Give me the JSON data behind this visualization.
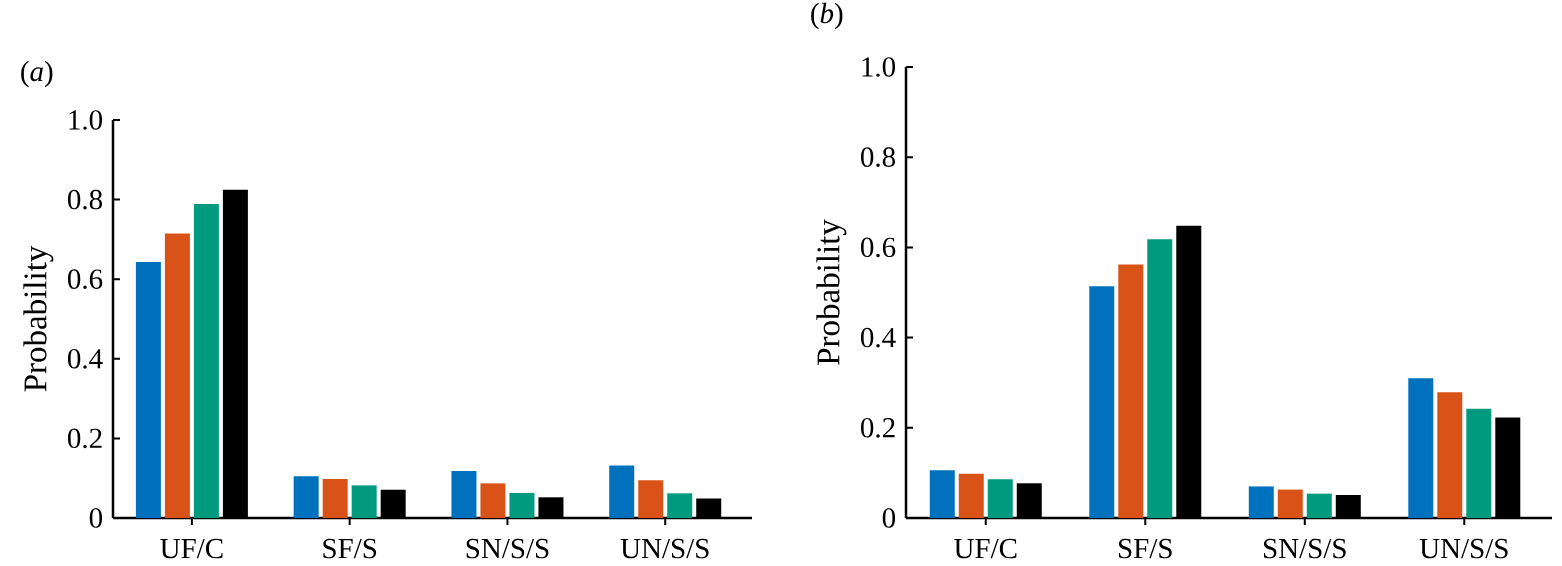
{
  "chart_data": [
    {
      "type": "bar",
      "title": "(*a*)",
      "ylabel": "Probability",
      "categories": [
        "UF/C",
        "SF/S",
        "SN/S/S",
        "UN/S/S"
      ],
      "series": [
        {
          "color": "#0072bd",
          "values": [
            0.643,
            0.105,
            0.118,
            0.132
          ]
        },
        {
          "color": "#d95319",
          "values": [
            0.715,
            0.098,
            0.087,
            0.095
          ]
        },
        {
          "color": "#009b7f",
          "values": [
            0.789,
            0.082,
            0.063,
            0.062
          ]
        },
        {
          "color": "#000000",
          "values": [
            0.825,
            0.071,
            0.052,
            0.049
          ]
        }
      ],
      "ylim": [
        0,
        1
      ],
      "yticks": [
        0,
        0.2,
        0.4,
        0.6,
        0.8,
        {
          "value": 1,
          "label": "1.0"
        }
      ],
      "grid": false
    },
    {
      "type": "bar",
      "title": "(*b*)",
      "ylabel": "Probability",
      "categories": [
        "UF/C",
        "SF/S",
        "SN/S/S",
        "UN/S/S"
      ],
      "series": [
        {
          "color": "#0072bd",
          "values": [
            0.106,
            0.514,
            0.07,
            0.31
          ]
        },
        {
          "color": "#d95319",
          "values": [
            0.098,
            0.562,
            0.063,
            0.279
          ]
        },
        {
          "color": "#009b7f",
          "values": [
            0.086,
            0.618,
            0.054,
            0.242
          ]
        },
        {
          "color": "#000000",
          "values": [
            0.077,
            0.648,
            0.051,
            0.223
          ]
        }
      ],
      "ylim": [
        0,
        1
      ],
      "yticks": [
        0,
        0.2,
        0.4,
        0.6,
        0.8,
        {
          "value": 1,
          "label": "1.0"
        }
      ],
      "grid": false
    }
  ]
}
